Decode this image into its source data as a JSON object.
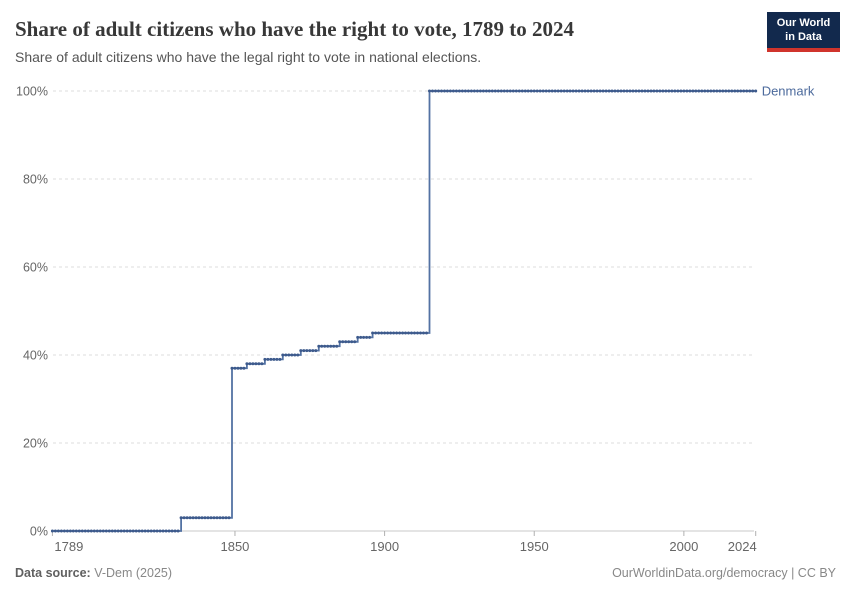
{
  "header": {
    "title": "Share of adult citizens who have the right to vote, 1789 to 2024",
    "subtitle": "Share of adult citizens who have the legal right to vote in national elections.",
    "logo": {
      "line1": "Our World",
      "line2": "in Data",
      "bg_color": "#12294d",
      "accent_color": "#d0342c"
    }
  },
  "chart_data": {
    "type": "line",
    "title": "Share of adult citizens who have the right to vote, 1789 to 2024",
    "ylabel": "",
    "xlabel": "",
    "xlim": [
      1789,
      2024
    ],
    "ylim": [
      0,
      100
    ],
    "x_ticks": [
      1789,
      1850,
      1900,
      1950,
      2000,
      2024
    ],
    "y_ticks": [
      0,
      20,
      40,
      60,
      80,
      100
    ],
    "y_tick_labels": [
      "0%",
      "20%",
      "40%",
      "60%",
      "80%",
      "100%"
    ],
    "grid": "horizontal-dashed",
    "unit": "%",
    "legend_position": "right-of-line-end",
    "series": [
      {
        "name": "Denmark",
        "label_color": "#4c6a9c",
        "line_color": "#5372a3",
        "point_color": "#3d5a8c",
        "steps": [
          [
            1789,
            0
          ],
          [
            1832,
            3
          ],
          [
            1849,
            37
          ],
          [
            1854,
            38
          ],
          [
            1860,
            39
          ],
          [
            1866,
            40
          ],
          [
            1872,
            41
          ],
          [
            1878,
            42
          ],
          [
            1885,
            43
          ],
          [
            1891,
            44
          ],
          [
            1896,
            45
          ],
          [
            1915,
            100
          ]
        ],
        "end_year": 2024
      }
    ]
  },
  "footer": {
    "source_label": "Data source:",
    "source_text": " V-Dem (2025)",
    "credit": "OurWorldinData.org/democracy | CC BY"
  }
}
